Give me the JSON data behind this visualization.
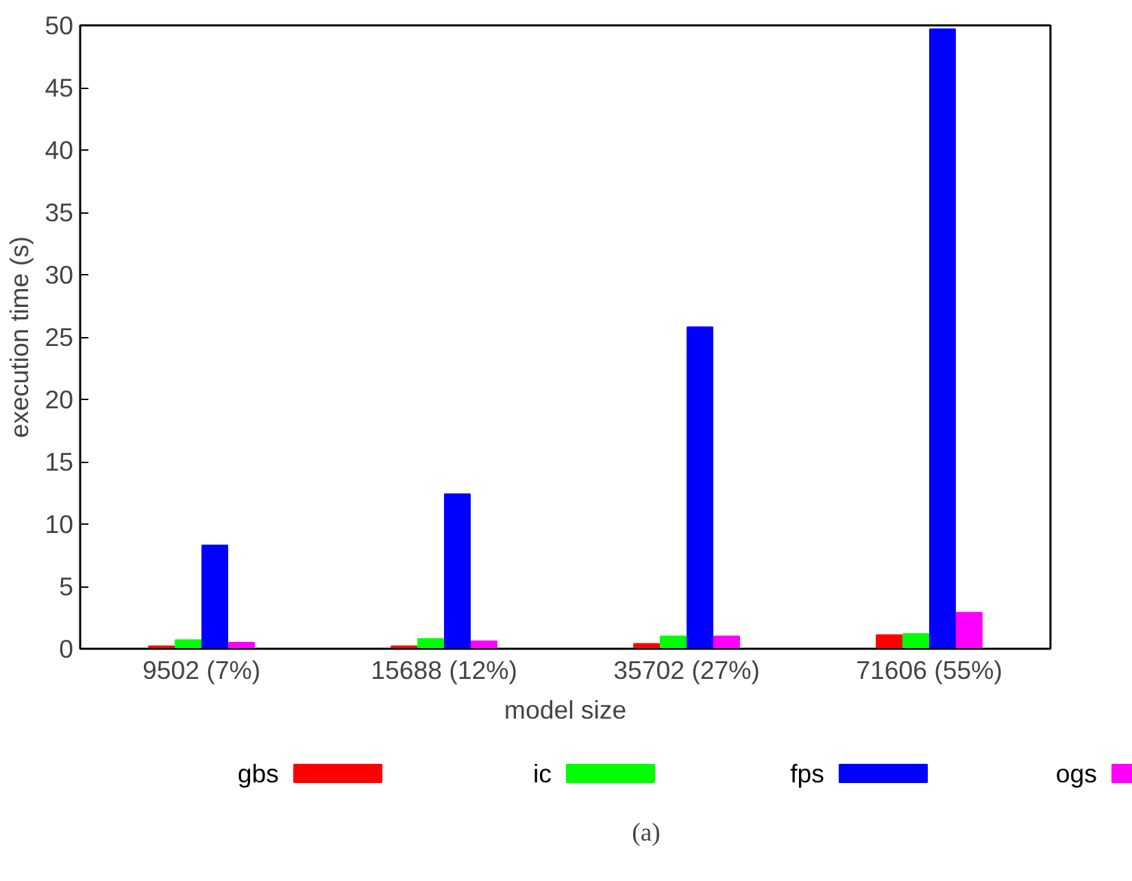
{
  "chart_data": {
    "type": "bar",
    "xlabel": "model size",
    "ylabel": "execution time (s)",
    "categories": [
      "9502 (7%)",
      "15688 (12%)",
      "35702 (27%)",
      "71606 (55%)"
    ],
    "series": [
      {
        "name": "gbs",
        "color": "#ff0000",
        "values": [
          0.2,
          0.2,
          0.4,
          1.1
        ]
      },
      {
        "name": "ic",
        "color": "#00ff00",
        "values": [
          0.7,
          0.8,
          1.0,
          1.2
        ]
      },
      {
        "name": "fps",
        "color": "#0000ff",
        "values": [
          8.3,
          12.4,
          25.8,
          49.7
        ]
      },
      {
        "name": "ogs",
        "color": "#ff00ff",
        "values": [
          0.5,
          0.6,
          1.0,
          2.9
        ]
      }
    ],
    "ylim": [
      0,
      50
    ],
    "yticks": [
      0,
      5,
      10,
      15,
      20,
      25,
      30,
      35,
      40,
      45,
      50
    ],
    "grid": false,
    "legend": "bottom",
    "annotations": [
      "(a)"
    ]
  }
}
